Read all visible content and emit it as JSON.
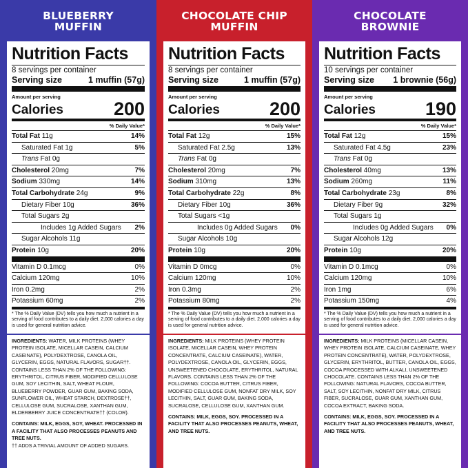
{
  "products": [
    {
      "header": "BLUEBERRY\nMUFFIN",
      "color": "#3a3aa8",
      "title": "Nutrition Facts",
      "servings": "8 servings per container",
      "serving_label": "Serving size",
      "serving_value": "1 muffin (57g)",
      "amount_per_serving": "Amount per serving",
      "calories_label": "Calories",
      "calories": "200",
      "dv_header": "% Daily Value*",
      "rows": [
        {
          "label": "Total Fat",
          "amount": "11g",
          "dv": "14%",
          "indent": 0,
          "bold": true
        },
        {
          "label": "Saturated Fat",
          "amount": "1g",
          "dv": "5%",
          "indent": 1,
          "bold": false
        },
        {
          "label": "Trans",
          "label2": "Fat 0g",
          "amount": "",
          "dv": "",
          "indent": 1,
          "bold": false,
          "italic": true
        },
        {
          "label": "Cholesterol",
          "amount": "20mg",
          "dv": "7%",
          "indent": 0,
          "bold": true
        },
        {
          "label": "Sodium",
          "amount": "330mg",
          "dv": "14%",
          "indent": 0,
          "bold": true
        },
        {
          "label": "Total Carbohydrate",
          "amount": "24g",
          "dv": "9%",
          "indent": 0,
          "bold": true
        },
        {
          "label": "Dietary Fiber",
          "amount": "10g",
          "dv": "36%",
          "indent": 1,
          "bold": false
        },
        {
          "label": "Total Sugars",
          "amount": "2g",
          "dv": "",
          "indent": 1,
          "bold": false
        },
        {
          "label": "Includes 1g Added Sugars",
          "amount": "",
          "dv": "2%",
          "indent": 2,
          "bold": false
        },
        {
          "label": "Sugar Alcohols",
          "amount": "11g",
          "dv": "",
          "indent": 1,
          "bold": false
        },
        {
          "label": "Protein",
          "amount": "10g",
          "dv": "20%",
          "indent": 0,
          "bold": true
        }
      ],
      "vitamins": [
        {
          "label": "Vitamin D 0.1mcg",
          "dv": "0%"
        },
        {
          "label": "Calcium 120mg",
          "dv": "10%"
        },
        {
          "label": "Iron 0.2mg",
          "dv": "2%"
        },
        {
          "label": "Potassium 60mg",
          "dv": "2%"
        }
      ],
      "footnote": "* The % Daily Value (DV) tells you how much a nutrient in a serving of food contributes to a daily diet. 2,000 calories a day is used for general nutrition advice.",
      "ingredients_label": "INGREDIENTS:",
      "ingredients": "WATER, MILK PROTEINS (WHEY PROTEIN ISOLATE, MICELLAR CASEIN, CALCIUM CASEINATE), POLYDEXTROSE, CANOLA OIL, GLYCERIN, EGGS, NATURAL FLAVORS, SUGAR††. CONTAINS LESS THAN 2% OF THE FOLLOWING: ERYTHRITOL, CITRUS FIBER, MODIFIED CELLULOSE GUM, SOY LECITHIN, SALT, WHEAT FLOUR, BLUEBERRY POWDER, GUAR GUM, BAKING SODA, SUNFLOWER OIL, WHEAT STARCH, DEXTROSE††, CELLULOSE GUM, SUCRALOSE, XANTHAN GUM, ELDERBERRY JUICE CONCENTRATE†† (COLOR).",
      "contains": "CONTAINS: MILK, EGGS, SOY, WHEAT. PROCESSED IN A FACILITY THAT ALSO PROCESSES PEANUTS AND TREE NUTS.",
      "note": "†† ADDS A TRIVIAL AMOUNT OF ADDED SUGARS."
    },
    {
      "header": "CHOCOLATE CHIP\nMUFFIN",
      "color": "#c8202c",
      "title": "Nutrition Facts",
      "servings": "8 servings per container",
      "serving_label": "Serving size",
      "serving_value": "1 muffin (57g)",
      "amount_per_serving": "Amount per serving",
      "calories_label": "Calories",
      "calories": "200",
      "dv_header": "% Daily Value*",
      "rows": [
        {
          "label": "Total Fat",
          "amount": "12g",
          "dv": "15%",
          "indent": 0,
          "bold": true
        },
        {
          "label": "Saturated Fat",
          "amount": "2.5g",
          "dv": "13%",
          "indent": 1,
          "bold": false
        },
        {
          "label": "Trans",
          "label2": "Fat 0g",
          "amount": "",
          "dv": "",
          "indent": 1,
          "bold": false,
          "italic": true
        },
        {
          "label": "Cholesterol",
          "amount": "20mg",
          "dv": "7%",
          "indent": 0,
          "bold": true
        },
        {
          "label": "Sodium",
          "amount": "310mg",
          "dv": "13%",
          "indent": 0,
          "bold": true
        },
        {
          "label": "Total Carbohydrate",
          "amount": "22g",
          "dv": "8%",
          "indent": 0,
          "bold": true
        },
        {
          "label": "Dietary Fiber",
          "amount": "10g",
          "dv": "36%",
          "indent": 1,
          "bold": false
        },
        {
          "label": "Total Sugars",
          "amount": "<1g",
          "dv": "",
          "indent": 1,
          "bold": false
        },
        {
          "label": "Includes 0g Added Sugars",
          "amount": "",
          "dv": "0%",
          "indent": 2,
          "bold": false
        },
        {
          "label": "Sugar Alcohols",
          "amount": "10g",
          "dv": "",
          "indent": 1,
          "bold": false
        },
        {
          "label": "Protein",
          "amount": "10g",
          "dv": "20%",
          "indent": 0,
          "bold": true
        }
      ],
      "vitamins": [
        {
          "label": "Vitamin D 0mcg",
          "dv": "0%"
        },
        {
          "label": "Calcium 120mg",
          "dv": "10%"
        },
        {
          "label": "Iron 0.3mg",
          "dv": "2%"
        },
        {
          "label": "Potassium 80mg",
          "dv": "2%"
        }
      ],
      "footnote": "* The % Daily Value (DV) tells you how much a nutrient in a serving of food contributes to a daily diet. 2,000 calories a day is used for general nutrition advice.",
      "ingredients_label": "INGREDIENTS:",
      "ingredients": "MILK PROTEINS (WHEY PROTEIN ISOLATE, MICELLAR CASEIN, WHEY PROTEIN CONCENTRATE, CALCIUM CASEINATE), WATER, POLYDEXTROSE, CANOLA OIL, GLYCERIN, EGGS, UNSWEETENED CHOCOLATE, ERYTHRITOL, NATURAL FLAVORS. CONTAINS LESS THAN 2% OF THE FOLLOWING: COCOA BUTTER, CITRUS FIBER, MODIFIED CELLULOSE GUM, NONFAT DRY MILK, SOY LECITHIN, SALT, GUAR GUM, BAKING SODA, SUCRALOSE, CELLULOSE GUM, XANTHAN GUM.",
      "contains": "CONTAINS: MILK, EGGS, SOY. PROCESSED IN A FACILITY THAT ALSO PROCESSES PEANUTS, WHEAT, AND TREE NUTS.",
      "note": ""
    },
    {
      "header": "CHOCOLATE\nBROWNIE",
      "color": "#6a2bb0",
      "title": "Nutrition Facts",
      "servings": "10 servings per container",
      "serving_label": "Serving size",
      "serving_value": "1 brownie (56g)",
      "amount_per_serving": "Amount per serving",
      "calories_label": "Calories",
      "calories": "190",
      "dv_header": "% Daily Value*",
      "rows": [
        {
          "label": "Total Fat",
          "amount": "12g",
          "dv": "15%",
          "indent": 0,
          "bold": true
        },
        {
          "label": "Saturated Fat",
          "amount": "4.5g",
          "dv": "23%",
          "indent": 1,
          "bold": false
        },
        {
          "label": "Trans",
          "label2": "Fat 0g",
          "amount": "",
          "dv": "",
          "indent": 1,
          "bold": false,
          "italic": true
        },
        {
          "label": "Cholesterol",
          "amount": "40mg",
          "dv": "13%",
          "indent": 0,
          "bold": true
        },
        {
          "label": "Sodium",
          "amount": "260mg",
          "dv": "11%",
          "indent": 0,
          "bold": true
        },
        {
          "label": "Total Carbohydrate",
          "amount": "23g",
          "dv": "8%",
          "indent": 0,
          "bold": true
        },
        {
          "label": "Dietary Fiber",
          "amount": "9g",
          "dv": "32%",
          "indent": 1,
          "bold": false
        },
        {
          "label": "Total Sugars",
          "amount": "1g",
          "dv": "",
          "indent": 1,
          "bold": false
        },
        {
          "label": "Includes 0g Added Sugars",
          "amount": "",
          "dv": "0%",
          "indent": 2,
          "bold": false
        },
        {
          "label": "Sugar Alcohols",
          "amount": "12g",
          "dv": "",
          "indent": 1,
          "bold": false
        },
        {
          "label": "Protein",
          "amount": "10g",
          "dv": "20%",
          "indent": 0,
          "bold": true
        }
      ],
      "vitamins": [
        {
          "label": "Vitamin D 0.1mcg",
          "dv": "0%"
        },
        {
          "label": "Calcium 120mg",
          "dv": "10%"
        },
        {
          "label": "Iron 1mg",
          "dv": "6%"
        },
        {
          "label": "Potassium 150mg",
          "dv": "4%"
        }
      ],
      "footnote": "* The % Daily Value (DV) tells you how much a nutrient in a serving of food contributes to a daily diet. 2,000 calories a day is used for general nutrition advice.",
      "ingredients_label": "INGREDIENTS:",
      "ingredients": "MILK PROTEINS (MICELLAR CASEIN, WHEY PROTEIN ISOLATE, CALCIUM CASEINATE, WHEY PROTEIN CONCENTRATE), WATER, POLYDEXTROSE, GLYCERIN, ERYTHRITOL, BUTTER, CANOLA OIL, EGGS, COCOA PROCESSED WITH ALKALI, UNSWEETENED CHOCOLATE. CONTAINS LESS THAN 2% OF THE FOLLOWING: NATURAL FLAVORS, COCOA BUTTER, SALT, SOY LECITHIN, NONFAT DRY MILK, CITRUS FIBER, SUCRALOSE, GUAR GUM, XANTHAN GUM, COCOA EXTRACT, BAKING SODA.",
      "contains": "CONTAINS: MILK, EGGS, SOY. PROCESSED IN A FACILITY THAT ALSO PROCESSES PEANUTS, WHEAT, AND TREE NUTS.",
      "note": ""
    }
  ]
}
